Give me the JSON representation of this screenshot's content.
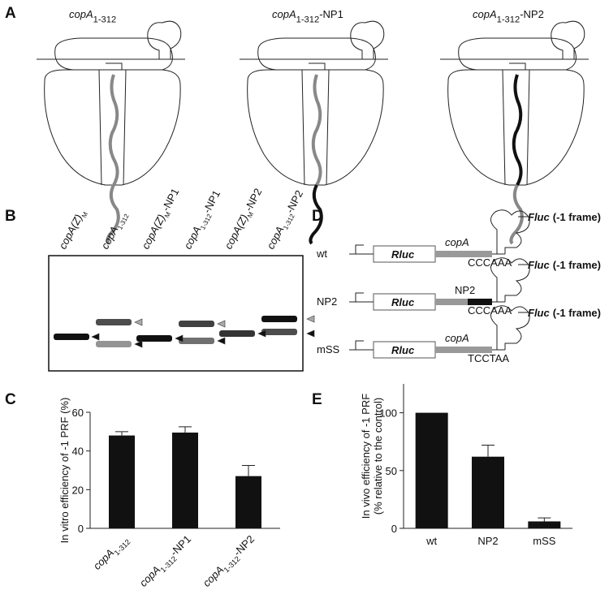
{
  "panel_labels": [
    "A",
    "B",
    "C",
    "D",
    "E"
  ],
  "panel_a": {
    "titles": [
      {
        "text": "copA",
        "sub": "1-312"
      },
      {
        "text": "copA",
        "sub": "1-312",
        "suffix": "-NP1"
      },
      {
        "text": "copA",
        "sub": "1-312",
        "suffix": "-NP2"
      }
    ]
  },
  "panel_b": {
    "lanes": [
      {
        "text": "copA(Z)",
        "sub": "M"
      },
      {
        "text": "copA",
        "sub": "1-312"
      },
      {
        "text": "copA(Z)",
        "sub": "M",
        "suffix": "-NP1"
      },
      {
        "text": "copA",
        "sub": "1-312",
        "suffix": "-NP1"
      },
      {
        "text": "copA(Z)",
        "sub": "M",
        "suffix": "-NP2"
      },
      {
        "text": "copA",
        "sub": "1-312",
        "suffix": "-NP2"
      }
    ]
  },
  "panel_d": {
    "constructs": [
      {
        "name": "wt",
        "reporter1": "Rluc",
        "insert": "copA",
        "italic": true,
        "reporter2": "Fluc",
        "frame": "(-1 frame)",
        "sequence": "CCCAAA"
      },
      {
        "name": "NP2",
        "reporter1": "Rluc",
        "insert": "NP2",
        "italic": false,
        "reporter2": "Fluc",
        "frame": "(-1 frame)",
        "sequence": "CCCAAA"
      },
      {
        "name": "mSS",
        "reporter1": "Rluc",
        "insert": "copA",
        "italic": true,
        "reporter2": "Fluc",
        "frame": "(-1 frame)",
        "sequence": "TCCTAA"
      }
    ]
  },
  "chart_data": [
    {
      "type": "bar",
      "ylabel": "In vitro efficiency of -1 PRF (%)",
      "categories": [
        {
          "text": "copA",
          "sub": "1-312"
        },
        {
          "text": "copA",
          "sub": "1-312",
          "suffix": "-NP1"
        },
        {
          "text": "copA",
          "sub": "1-312",
          "suffix": "-NP2"
        }
      ],
      "values": [
        48,
        49.5,
        27
      ],
      "errors": [
        2,
        3,
        5.5
      ],
      "color": "#111111",
      "ylim": [
        0,
        60
      ],
      "yticks": [
        0,
        20,
        40,
        60
      ]
    },
    {
      "type": "bar",
      "ylabel": [
        "In vivo efficiency of -1 PRF",
        "(% relative to the control)"
      ],
      "categories": [
        "wt",
        "NP2",
        "mSS"
      ],
      "values": [
        100,
        62,
        6
      ],
      "errors": [
        null,
        10,
        3
      ],
      "color": "#111111",
      "ylim": [
        0,
        125
      ],
      "yticks": [
        0,
        50,
        100
      ]
    }
  ]
}
